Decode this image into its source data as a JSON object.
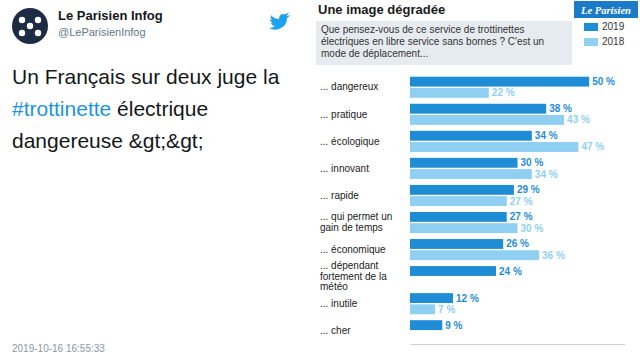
{
  "tweet": {
    "author": "Le Parisien Infog",
    "handle": "@LeParisienInfog",
    "text": "Un Français sur deux juge la #trottinette électrique dangereuse &gt;&gt;",
    "timestamp": "2019-10-16 16:55:33"
  },
  "header": {
    "logo": "Le Parisien"
  },
  "chart_data": {
    "type": "bar",
    "orientation": "horizontal",
    "title": "Une image dégradée",
    "subtitle": "Que pensez-vous de ce service de trottinettes électriques en libre service sans bornes ? C'est un mode de déplacement...",
    "categories": [
      "... dangereux",
      "... pratique",
      "... écologique",
      "... innovant",
      "... rapide",
      "... qui permet un gain de temps",
      "... économique",
      "... dépendant fortement de la météo",
      "... inutile",
      "... cher"
    ],
    "series": [
      {
        "name": "2019",
        "color": "#1f8dd6",
        "values": [
          50,
          38,
          34,
          30,
          29,
          27,
          26,
          24,
          12,
          9
        ],
        "value_labels": [
          "50 %",
          "38 %",
          "34 %",
          "30 %",
          "29 %",
          "27 %",
          "26 %",
          "24 %",
          "12 %",
          "9 %"
        ]
      },
      {
        "name": "2018",
        "color": "#8fd0f2",
        "values": [
          22,
          43,
          47,
          34,
          27,
          30,
          36,
          null,
          7,
          null
        ],
        "value_labels": [
          "22 %",
          "43 %",
          "47 %",
          "34 %",
          "27 %",
          "30 %",
          "36 %",
          null,
          "7 %",
          null
        ]
      }
    ],
    "xlim": [
      0,
      60
    ],
    "legend": "top-right",
    "data_labels": true,
    "tick_labels": "y"
  }
}
